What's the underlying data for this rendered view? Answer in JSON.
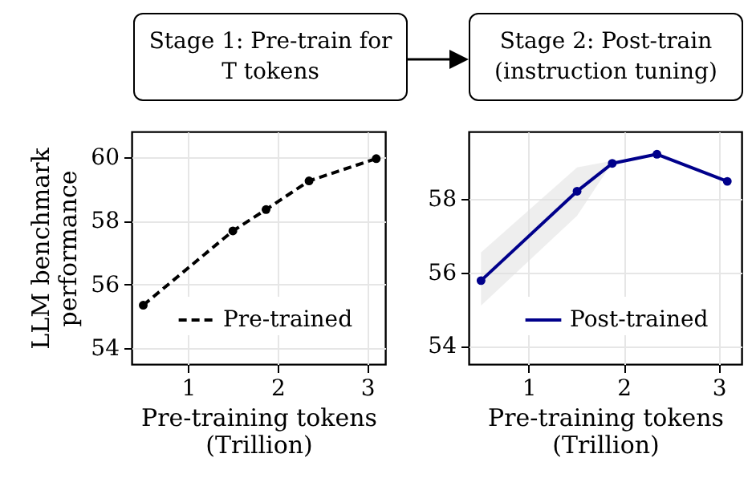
{
  "chart_data": [
    {
      "type": "line",
      "annotations": [
        "Stage 1: Pre-train for\nT tokens"
      ],
      "xlabel": "Pre-training tokens\n(Trillion)",
      "ylabel": "LLM benchmark\nperformance",
      "x": [
        0.5,
        1.5,
        1.87,
        2.35,
        3.1
      ],
      "series": [
        {
          "name": "Pre-trained",
          "color": "#000000",
          "values": [
            55.35,
            57.68,
            58.35,
            59.25,
            59.95
          ],
          "line_style": "dashed"
        }
      ],
      "xlim": [
        0.37,
        3.2
      ],
      "ylim": [
        53.5,
        60.8
      ],
      "xticks": [
        1,
        2,
        3
      ],
      "yticks": [
        54,
        56,
        58,
        60
      ],
      "grid": true,
      "legend": "bottom right",
      "marker": "circle"
    },
    {
      "type": "line",
      "annotations": [
        "Stage 2: Post-train\n(instruction tuning)"
      ],
      "xlabel": "Pre-training tokens\n(Trillion)",
      "x": [
        0.5,
        1.51,
        1.88,
        2.35,
        3.09
      ],
      "series": [
        {
          "name": "Post-trained",
          "color": "#00008b",
          "values": [
            55.78,
            58.22,
            58.98,
            59.23,
            58.49
          ],
          "lower": [
            55.1,
            57.55,
            59.0,
            null,
            null
          ],
          "upper": [
            56.55,
            58.87,
            59.05,
            null,
            null
          ],
          "line_style": "solid"
        }
      ],
      "xlim": [
        0.37,
        3.24
      ],
      "ylim": [
        53.5,
        59.85
      ],
      "xticks": [
        1,
        2,
        3
      ],
      "yticks": [
        54,
        56,
        58
      ],
      "grid": true,
      "legend": "bottom right",
      "marker": "circle"
    }
  ]
}
